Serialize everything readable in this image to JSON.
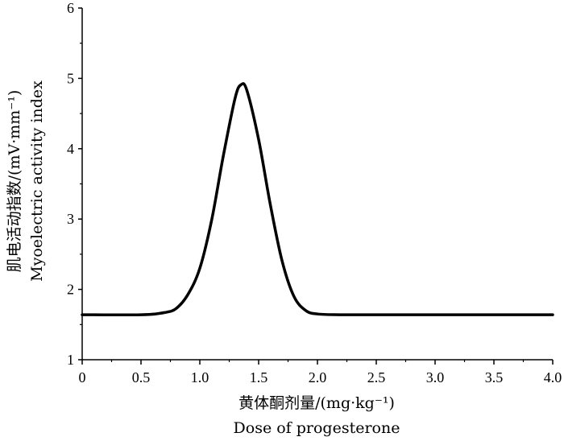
{
  "chart_data": {
    "type": "line",
    "title": "",
    "xlabel_cn": "黄体酮剂量/(mg·kg⁻¹)",
    "xlabel_en": "Dose of progesterone",
    "ylabel_cn": "肌电活动指数/(mV·mm⁻¹)",
    "ylabel_en": "Myoelectric activity index",
    "xlim": [
      0,
      4.0
    ],
    "ylim": [
      1,
      6
    ],
    "x_ticks": [
      "0",
      "0.5",
      "1.0",
      "1.5",
      "2.0",
      "2.5",
      "3.0",
      "3.5",
      "4.0"
    ],
    "y_ticks": [
      "1",
      "2",
      "3",
      "4",
      "5",
      "6"
    ],
    "grid": false,
    "legend": "none",
    "line_color": "#000000",
    "series": [
      {
        "x": [
          0,
          0.5,
          0.7,
          0.8,
          0.9,
          1.0,
          1.1,
          1.2,
          1.3,
          1.35,
          1.4,
          1.5,
          1.6,
          1.7,
          1.8,
          1.9,
          2.0,
          2.2,
          2.5,
          3.0,
          3.5,
          4.0
        ],
        "y": [
          1.64,
          1.64,
          1.67,
          1.73,
          1.93,
          2.3,
          2.98,
          3.9,
          4.72,
          4.91,
          4.83,
          4.13,
          3.2,
          2.4,
          1.9,
          1.7,
          1.65,
          1.64,
          1.64,
          1.64,
          1.64,
          1.64
        ]
      }
    ]
  }
}
